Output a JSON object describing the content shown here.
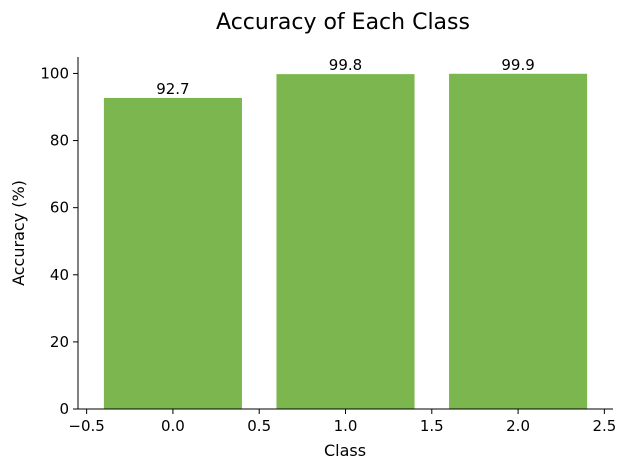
{
  "chart_data": {
    "type": "bar",
    "title": "Accuracy of Each Class",
    "xlabel": "Class",
    "ylabel": "Accuracy (%)",
    "x": [
      0,
      1,
      2
    ],
    "values": [
      92.7,
      99.8,
      99.9
    ],
    "data_labels": [
      "92.7",
      "99.8",
      "99.9"
    ],
    "bar_width": 0.8,
    "xlim": [
      -0.55,
      2.55
    ],
    "ylim": [
      0,
      104.9
    ],
    "xticks": [
      -0.5,
      0.0,
      0.5,
      1.0,
      1.5,
      2.0,
      2.5
    ],
    "xtick_labels": [
      "−0.5",
      "0.0",
      "0.5",
      "1.0",
      "1.5",
      "2.0",
      "2.5"
    ],
    "yticks": [
      0,
      20,
      40,
      60,
      80,
      100
    ],
    "ytick_labels": [
      "0",
      "20",
      "40",
      "60",
      "80",
      "100"
    ],
    "grid": false,
    "bar_color": "#7bb74e"
  }
}
